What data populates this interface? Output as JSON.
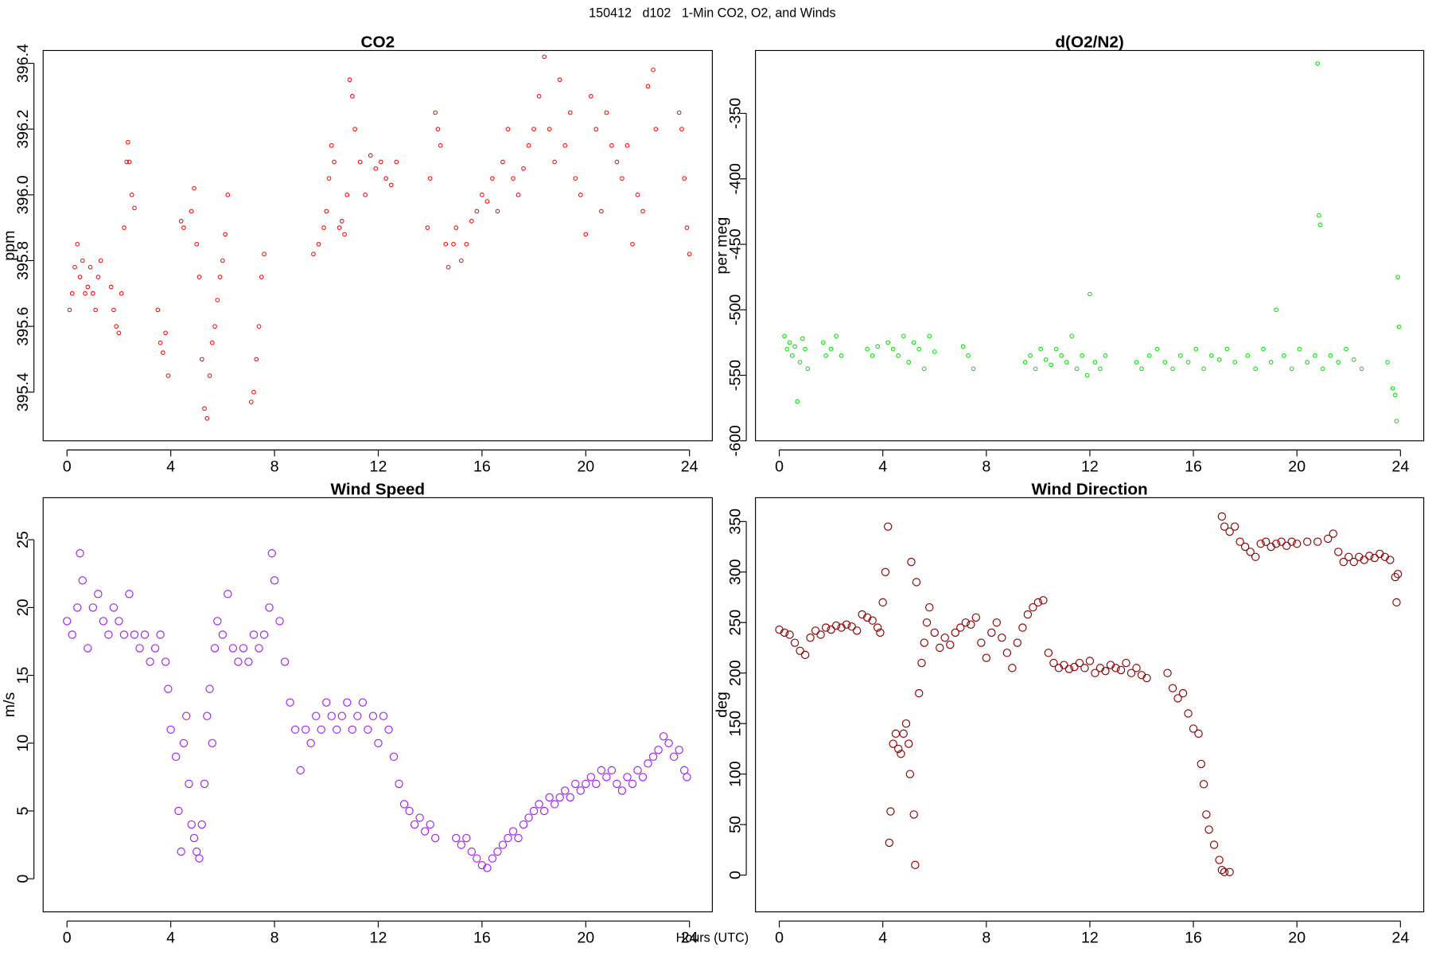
{
  "title": "150412   d102   1-Min CO2, O2, and Winds",
  "xlabel": "Hours (UTC)",
  "chart_data": [
    {
      "type": "scatter",
      "title": "CO2",
      "ylabel": "ppm",
      "color": "#ff0000",
      "xlim": [
        -0.92,
        24.88
      ],
      "ylim": [
        395.252,
        396.439
      ],
      "xticks": [
        0,
        4,
        8,
        12,
        16,
        20,
        24
      ],
      "yticks": [
        {
          "value": 395.4,
          "label": "395.4"
        },
        {
          "value": 395.6,
          "label": "395.6"
        },
        {
          "value": 395.8,
          "label": "395.8"
        },
        {
          "value": 396.0,
          "label": "396.0"
        },
        {
          "value": 396.2,
          "label": "396.2"
        },
        {
          "value": 396.4,
          "label": "396.4"
        }
      ],
      "x": [
        0.1,
        0.2,
        0.3,
        0.4,
        0.5,
        0.6,
        0.7,
        0.8,
        0.9,
        1.0,
        1.1,
        1.2,
        1.3,
        1.7,
        1.8,
        1.9,
        2.0,
        2.1,
        2.2,
        2.3,
        2.35,
        2.4,
        2.5,
        2.6,
        3.5,
        3.6,
        3.7,
        3.8,
        3.9,
        4.4,
        4.5,
        4.8,
        4.9,
        5.0,
        5.1,
        5.2,
        5.3,
        5.4,
        5.5,
        5.6,
        5.7,
        5.8,
        5.9,
        6.0,
        6.1,
        6.2,
        7.1,
        7.2,
        7.3,
        7.4,
        7.5,
        7.6,
        9.5,
        9.7,
        9.9,
        10.0,
        10.1,
        10.2,
        10.3,
        10.5,
        10.6,
        10.7,
        10.8,
        10.9,
        11.0,
        11.1,
        11.3,
        11.5,
        11.7,
        11.9,
        12.1,
        12.3,
        12.5,
        12.7,
        13.9,
        14.0,
        14.2,
        14.3,
        14.4,
        14.6,
        14.7,
        14.9,
        15.0,
        15.2,
        15.4,
        15.6,
        15.8,
        16.0,
        16.2,
        16.4,
        16.6,
        16.8,
        17.0,
        17.2,
        17.4,
        17.6,
        17.8,
        18.0,
        18.2,
        18.4,
        18.6,
        18.8,
        19.0,
        19.2,
        19.4,
        19.6,
        19.8,
        20.0,
        20.2,
        20.4,
        20.6,
        20.8,
        21.0,
        21.2,
        21.4,
        21.6,
        21.8,
        22.0,
        22.2,
        22.4,
        22.6,
        22.7,
        23.6,
        23.7,
        23.8,
        23.9,
        24.0
      ],
      "values": [
        395.65,
        395.7,
        395.78,
        395.85,
        395.75,
        395.8,
        395.7,
        395.72,
        395.78,
        395.7,
        395.65,
        395.75,
        395.8,
        395.72,
        395.65,
        395.6,
        395.58,
        395.7,
        395.9,
        396.1,
        396.16,
        396.1,
        396.0,
        395.96,
        395.65,
        395.55,
        395.52,
        395.58,
        395.45,
        395.92,
        395.9,
        395.95,
        396.02,
        395.85,
        395.75,
        395.5,
        395.35,
        395.32,
        395.45,
        395.55,
        395.6,
        395.68,
        395.75,
        395.8,
        395.88,
        396.0,
        395.37,
        395.4,
        395.5,
        395.6,
        395.75,
        395.82,
        395.82,
        395.85,
        395.9,
        395.95,
        396.05,
        396.15,
        396.1,
        395.9,
        395.92,
        395.88,
        396.0,
        396.35,
        396.3,
        396.2,
        396.1,
        396.0,
        396.12,
        396.08,
        396.1,
        396.05,
        396.03,
        396.1,
        395.9,
        396.05,
        396.25,
        396.2,
        396.15,
        395.85,
        395.78,
        395.85,
        395.9,
        395.8,
        395.85,
        395.92,
        395.95,
        396.0,
        395.98,
        396.05,
        395.95,
        396.1,
        396.2,
        396.05,
        396.0,
        396.08,
        396.15,
        396.2,
        396.3,
        396.42,
        396.2,
        396.1,
        396.35,
        396.15,
        396.25,
        396.05,
        396.0,
        395.88,
        396.3,
        396.2,
        395.95,
        396.25,
        396.15,
        396.1,
        396.05,
        396.15,
        395.85,
        396.0,
        395.95,
        396.33,
        396.38,
        396.2,
        396.25,
        396.2,
        396.05,
        395.9,
        395.82
      ]
    },
    {
      "type": "scatter",
      "title": "d(O2/N2)",
      "ylabel": "per meg",
      "color": "#00e000",
      "xlim": [
        -0.92,
        24.9
      ],
      "ylim": [
        -600,
        -302
      ],
      "xticks": [
        0,
        4,
        8,
        12,
        16,
        20,
        24
      ],
      "yticks": [
        -600,
        -550,
        -500,
        -450,
        -400,
        -350
      ],
      "x": [
        0.2,
        0.3,
        0.4,
        0.5,
        0.6,
        0.7,
        0.8,
        0.9,
        1.0,
        1.1,
        1.7,
        1.8,
        2.0,
        2.2,
        2.4,
        3.4,
        3.6,
        3.8,
        4.2,
        4.4,
        4.6,
        4.8,
        5.0,
        5.2,
        5.4,
        5.6,
        5.8,
        6.0,
        7.1,
        7.3,
        7.5,
        9.5,
        9.7,
        9.9,
        10.1,
        10.3,
        10.5,
        10.7,
        10.9,
        11.1,
        11.3,
        11.5,
        11.7,
        11.9,
        12.0,
        12.2,
        12.4,
        12.6,
        13.8,
        14.0,
        14.3,
        14.6,
        14.9,
        15.2,
        15.5,
        15.8,
        16.1,
        16.4,
        16.7,
        17.0,
        17.3,
        17.6,
        18.1,
        18.4,
        18.7,
        19.0,
        19.2,
        19.5,
        19.8,
        20.1,
        20.4,
        20.7,
        20.8,
        20.85,
        20.9,
        21.0,
        21.3,
        21.6,
        21.9,
        22.2,
        22.5,
        23.5,
        23.7,
        23.8,
        23.85,
        23.9,
        23.95
      ],
      "values": [
        -520,
        -530,
        -525,
        -535,
        -528,
        -570,
        -540,
        -522,
        -530,
        -545,
        -525,
        -535,
        -530,
        -520,
        -535,
        -530,
        -535,
        -528,
        -525,
        -530,
        -535,
        -520,
        -540,
        -525,
        -530,
        -545,
        -520,
        -532,
        -528,
        -535,
        -545,
        -540,
        -535,
        -545,
        -530,
        -538,
        -542,
        -530,
        -535,
        -540,
        -520,
        -545,
        -535,
        -550,
        -488,
        -540,
        -545,
        -535,
        -540,
        -545,
        -535,
        -530,
        -540,
        -545,
        -535,
        -540,
        -530,
        -545,
        -535,
        -538,
        -530,
        -540,
        -535,
        -545,
        -530,
        -540,
        -500,
        -535,
        -545,
        -530,
        -540,
        -535,
        -312,
        -428,
        -435,
        -545,
        -535,
        -540,
        -530,
        -538,
        -545,
        -540,
        -560,
        -565,
        -585,
        -475,
        -513
      ]
    },
    {
      "type": "scatter",
      "title": "Wind Speed",
      "ylabel": "m/s",
      "color": "#a020f0",
      "xlim": [
        -0.92,
        24.88
      ],
      "ylim": [
        -2.44,
        28.1
      ],
      "xticks": [
        0,
        4,
        8,
        12,
        16,
        20,
        24
      ],
      "yticks": [
        0,
        5,
        10,
        15,
        20,
        25
      ],
      "x": [
        0.0,
        0.2,
        0.4,
        0.5,
        0.6,
        0.8,
        1.0,
        1.2,
        1.4,
        1.6,
        1.8,
        2.0,
        2.2,
        2.4,
        2.6,
        2.8,
        3.0,
        3.2,
        3.4,
        3.6,
        3.8,
        3.9,
        4.0,
        4.2,
        4.3,
        4.4,
        4.5,
        4.6,
        4.7,
        4.8,
        4.9,
        5.0,
        5.1,
        5.2,
        5.3,
        5.4,
        5.5,
        5.6,
        5.7,
        5.8,
        6.0,
        6.2,
        6.4,
        6.6,
        6.8,
        7.0,
        7.2,
        7.4,
        7.6,
        7.8,
        7.9,
        8.0,
        8.2,
        8.4,
        8.6,
        8.8,
        9.0,
        9.2,
        9.4,
        9.6,
        9.8,
        10.0,
        10.2,
        10.4,
        10.6,
        10.8,
        11.0,
        11.2,
        11.4,
        11.6,
        11.8,
        12.0,
        12.2,
        12.4,
        12.6,
        12.8,
        13.0,
        13.2,
        13.4,
        13.6,
        13.8,
        14.0,
        14.2,
        15.0,
        15.2,
        15.4,
        15.6,
        15.8,
        16.0,
        16.2,
        16.4,
        16.6,
        16.8,
        17.0,
        17.2,
        17.4,
        17.6,
        17.8,
        18.0,
        18.2,
        18.4,
        18.6,
        18.8,
        19.0,
        19.2,
        19.4,
        19.6,
        19.8,
        20.0,
        20.2,
        20.4,
        20.6,
        20.8,
        21.0,
        21.2,
        21.4,
        21.6,
        21.8,
        22.0,
        22.2,
        22.4,
        22.6,
        22.8,
        23.0,
        23.2,
        23.4,
        23.6,
        23.8,
        23.9
      ],
      "values": [
        19,
        18,
        20,
        24,
        22,
        17,
        20,
        21,
        19,
        18,
        20,
        19,
        18,
        21,
        18,
        17,
        18,
        16,
        17,
        18,
        16,
        14,
        11,
        9,
        5,
        2,
        10,
        12,
        7,
        4,
        3,
        2,
        1.5,
        4,
        7,
        12,
        14,
        10,
        17,
        19,
        18,
        21,
        17,
        16,
        17,
        16,
        18,
        17,
        18,
        20,
        24,
        22,
        19,
        16,
        13,
        11,
        8,
        11,
        10,
        12,
        11,
        13,
        12,
        11,
        12,
        13,
        11,
        12,
        13,
        11,
        12,
        10,
        12,
        11,
        9,
        7,
        5.5,
        5,
        4,
        4.5,
        3.5,
        4,
        3,
        3,
        2.5,
        3,
        2,
        1.5,
        1,
        0.8,
        1.5,
        2,
        2.5,
        3,
        3.5,
        3,
        4,
        4.5,
        5,
        5.5,
        5,
        6,
        5.5,
        6,
        6.5,
        6,
        7,
        6.5,
        7,
        7.5,
        7,
        8,
        7.5,
        8,
        7,
        6.5,
        7.5,
        7,
        8,
        7.5,
        8.5,
        9,
        9.5,
        10.5,
        10,
        9,
        9.5,
        8,
        7.5
      ]
    },
    {
      "type": "scatter",
      "title": "Wind Direction",
      "ylabel": "deg",
      "color": "#8b0000",
      "xlim": [
        -0.92,
        24.9
      ],
      "ylim": [
        -36.4,
        373.6
      ],
      "xticks": [
        0,
        4,
        8,
        12,
        16,
        20,
        24
      ],
      "yticks": [
        0,
        50,
        100,
        150,
        200,
        250,
        300,
        350
      ],
      "x": [
        0.0,
        0.2,
        0.4,
        0.6,
        0.8,
        1.0,
        1.2,
        1.4,
        1.6,
        1.8,
        2.0,
        2.2,
        2.4,
        2.6,
        2.8,
        3.0,
        3.2,
        3.4,
        3.6,
        3.8,
        3.9,
        4.0,
        4.1,
        4.2,
        4.3,
        4.25,
        4.4,
        4.5,
        4.6,
        4.7,
        4.8,
        4.9,
        5.0,
        5.05,
        5.1,
        5.2,
        5.25,
        5.3,
        5.4,
        5.5,
        5.6,
        5.7,
        5.8,
        6.0,
        6.2,
        6.4,
        6.6,
        6.8,
        7.0,
        7.2,
        7.4,
        7.6,
        7.8,
        8.0,
        8.2,
        8.4,
        8.6,
        8.8,
        9.0,
        9.2,
        9.4,
        9.6,
        9.8,
        10.0,
        10.2,
        10.4,
        10.6,
        10.8,
        11.0,
        11.2,
        11.4,
        11.6,
        11.8,
        12.0,
        12.2,
        12.4,
        12.6,
        12.8,
        13.0,
        13.2,
        13.4,
        13.6,
        13.8,
        14.0,
        14.2,
        15.0,
        15.2,
        15.4,
        15.6,
        15.8,
        16.0,
        16.2,
        16.3,
        16.4,
        16.5,
        16.6,
        16.8,
        17.0,
        17.1,
        17.2,
        17.4,
        17.1,
        17.2,
        17.4,
        17.6,
        17.8,
        18.0,
        18.2,
        18.4,
        18.6,
        18.8,
        19.0,
        19.2,
        19.4,
        19.6,
        19.8,
        20.0,
        20.4,
        20.8,
        21.2,
        21.4,
        21.6,
        21.8,
        22.0,
        22.2,
        22.4,
        22.6,
        22.8,
        23.0,
        23.2,
        23.4,
        23.6,
        23.8,
        23.85,
        23.9
      ],
      "values": [
        243,
        240,
        238,
        230,
        222,
        218,
        235,
        242,
        238,
        245,
        243,
        247,
        245,
        248,
        246,
        242,
        258,
        255,
        252,
        245,
        240,
        270,
        300,
        345,
        63,
        32,
        130,
        140,
        125,
        120,
        140,
        150,
        130,
        100,
        310,
        60,
        10,
        290,
        180,
        210,
        230,
        250,
        265,
        240,
        225,
        235,
        228,
        240,
        245,
        250,
        248,
        255,
        230,
        215,
        240,
        250,
        235,
        220,
        205,
        230,
        245,
        258,
        265,
        270,
        272,
        220,
        210,
        205,
        208,
        204,
        206,
        210,
        205,
        212,
        200,
        205,
        202,
        208,
        205,
        203,
        210,
        200,
        205,
        198,
        195,
        200,
        185,
        175,
        180,
        160,
        145,
        140,
        110,
        90,
        60,
        45,
        30,
        15,
        5,
        3,
        3,
        355,
        345,
        340,
        345,
        330,
        325,
        320,
        315,
        328,
        330,
        325,
        328,
        330,
        326,
        330,
        328,
        330,
        330,
        333,
        338,
        320,
        310,
        315,
        310,
        315,
        312,
        316,
        314,
        318,
        315,
        312,
        295,
        270,
        298
      ]
    }
  ]
}
